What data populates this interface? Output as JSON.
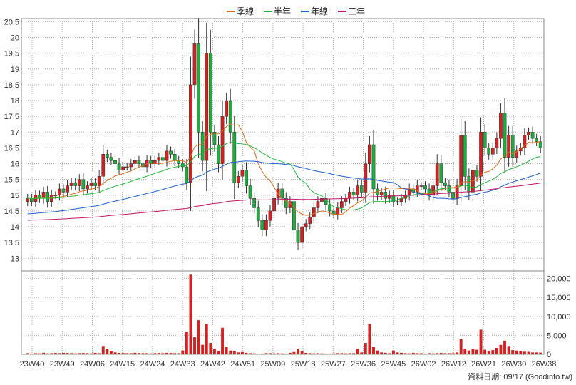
{
  "chart_data": {
    "type": "candlestick-with-volume",
    "legend": [
      {
        "label": "季線",
        "color": "#e06a1a"
      },
      {
        "label": "半年",
        "color": "#22b83a"
      },
      {
        "label": "年線",
        "color": "#1f5fd0"
      },
      {
        "label": "三年",
        "color": "#c2186b"
      }
    ],
    "price_axis": {
      "ylim": [
        12.6,
        20.6
      ],
      "ticks": [
        "13",
        "13.5",
        "14",
        "14.5",
        "15",
        "15.5",
        "16",
        "16.5",
        "17",
        "17.5",
        "18",
        "18.5",
        "19",
        "19.5",
        "20",
        "20.5"
      ],
      "position": "left"
    },
    "volume_axis": {
      "ylim": [
        0,
        22000
      ],
      "ticks": [
        "0",
        "5,000",
        "10,000",
        "15,000",
        "20,000"
      ],
      "position": "right"
    },
    "x_ticks": [
      "23W40",
      "23W49",
      "24W06",
      "24W15",
      "24W24",
      "24W33",
      "24W42",
      "24W51",
      "25W09",
      "25W18",
      "25W27",
      "25W36",
      "25W45",
      "26W02",
      "26W12",
      "26W21",
      "26W30",
      "26W38"
    ],
    "footer": "資料日期: 09/17  (Goodinfo.tw)",
    "colors": {
      "up": "#d42020",
      "down": "#1cae3c",
      "volume": "#d42020",
      "grid": "#b0b0b0"
    },
    "closes": [
      14.9,
      14.8,
      15.0,
      14.9,
      15.1,
      14.8,
      15.0,
      15.0,
      15.2,
      15.1,
      15.3,
      15.4,
      15.3,
      15.5,
      15.2,
      15.3,
      15.4,
      15.3,
      15.6,
      16.3,
      16.2,
      16.1,
      16.0,
      15.8,
      15.9,
      15.9,
      16.0,
      16.1,
      16.0,
      15.9,
      16.1,
      16.0,
      16.1,
      16.2,
      16.1,
      16.4,
      16.3,
      16.1,
      16.0,
      15.9,
      15.4,
      18.5,
      19.8,
      17.0,
      16.1,
      19.5,
      17.0,
      16.6,
      16.0,
      17.5,
      18.0,
      17.0,
      15.4,
      15.6,
      15.8,
      15.3,
      14.9,
      14.6,
      14.2,
      13.9,
      14.2,
      14.5,
      14.9,
      15.2,
      14.9,
      14.6,
      14.8,
      13.9,
      13.5,
      14.0,
      14.1,
      14.3,
      14.6,
      14.8,
      14.9,
      14.7,
      14.5,
      14.4,
      14.6,
      14.8,
      14.9,
      15.1,
      15.0,
      15.3,
      15.1,
      16.0,
      16.6,
      15.2,
      15.0,
      15.1,
      14.9,
      15.0,
      14.8,
      14.8,
      14.9,
      15.0,
      15.2,
      15.1,
      15.3,
      15.3,
      15.2,
      15.0,
      15.3,
      16.0,
      15.4,
      15.3,
      15.1,
      14.9,
      15.3,
      16.9,
      15.6,
      15.1,
      15.8,
      15.6,
      17.0,
      16.5,
      16.3,
      16.5,
      16.8,
      17.6,
      16.2,
      16.9,
      16.2,
      16.4,
      16.5,
      16.9,
      17.0,
      16.8,
      16.7,
      16.5
    ],
    "volumes": [
      300,
      200,
      300,
      250,
      400,
      250,
      300,
      350,
      300,
      400,
      350,
      300,
      250,
      300,
      350,
      300,
      250,
      400,
      300,
      2200,
      1500,
      900,
      500,
      400,
      350,
      300,
      300,
      400,
      350,
      300,
      300,
      250,
      300,
      350,
      300,
      400,
      350,
      300,
      300,
      1000,
      6000,
      21000,
      4500,
      9000,
      2500,
      8000,
      3000,
      1500,
      900,
      7000,
      2000,
      1000,
      900,
      500,
      600,
      400,
      300,
      250,
      200,
      200,
      300,
      300,
      250,
      300,
      250,
      200,
      400,
      600,
      1500,
      800,
      400,
      300,
      250,
      300,
      250,
      200,
      200,
      250,
      300,
      300,
      250,
      300,
      300,
      1500,
      500,
      3000,
      8000,
      2000,
      1000,
      500,
      400,
      300,
      1000,
      500,
      400,
      300,
      250,
      400,
      300,
      300,
      200,
      300,
      250,
      300,
      350,
      300,
      300,
      300,
      500,
      4000,
      1500,
      1000,
      1500,
      1200,
      6500,
      1200,
      900,
      1100,
      1700,
      2500,
      3600,
      2200,
      1100,
      1000,
      850,
      700,
      650,
      500,
      500,
      450
    ]
  }
}
